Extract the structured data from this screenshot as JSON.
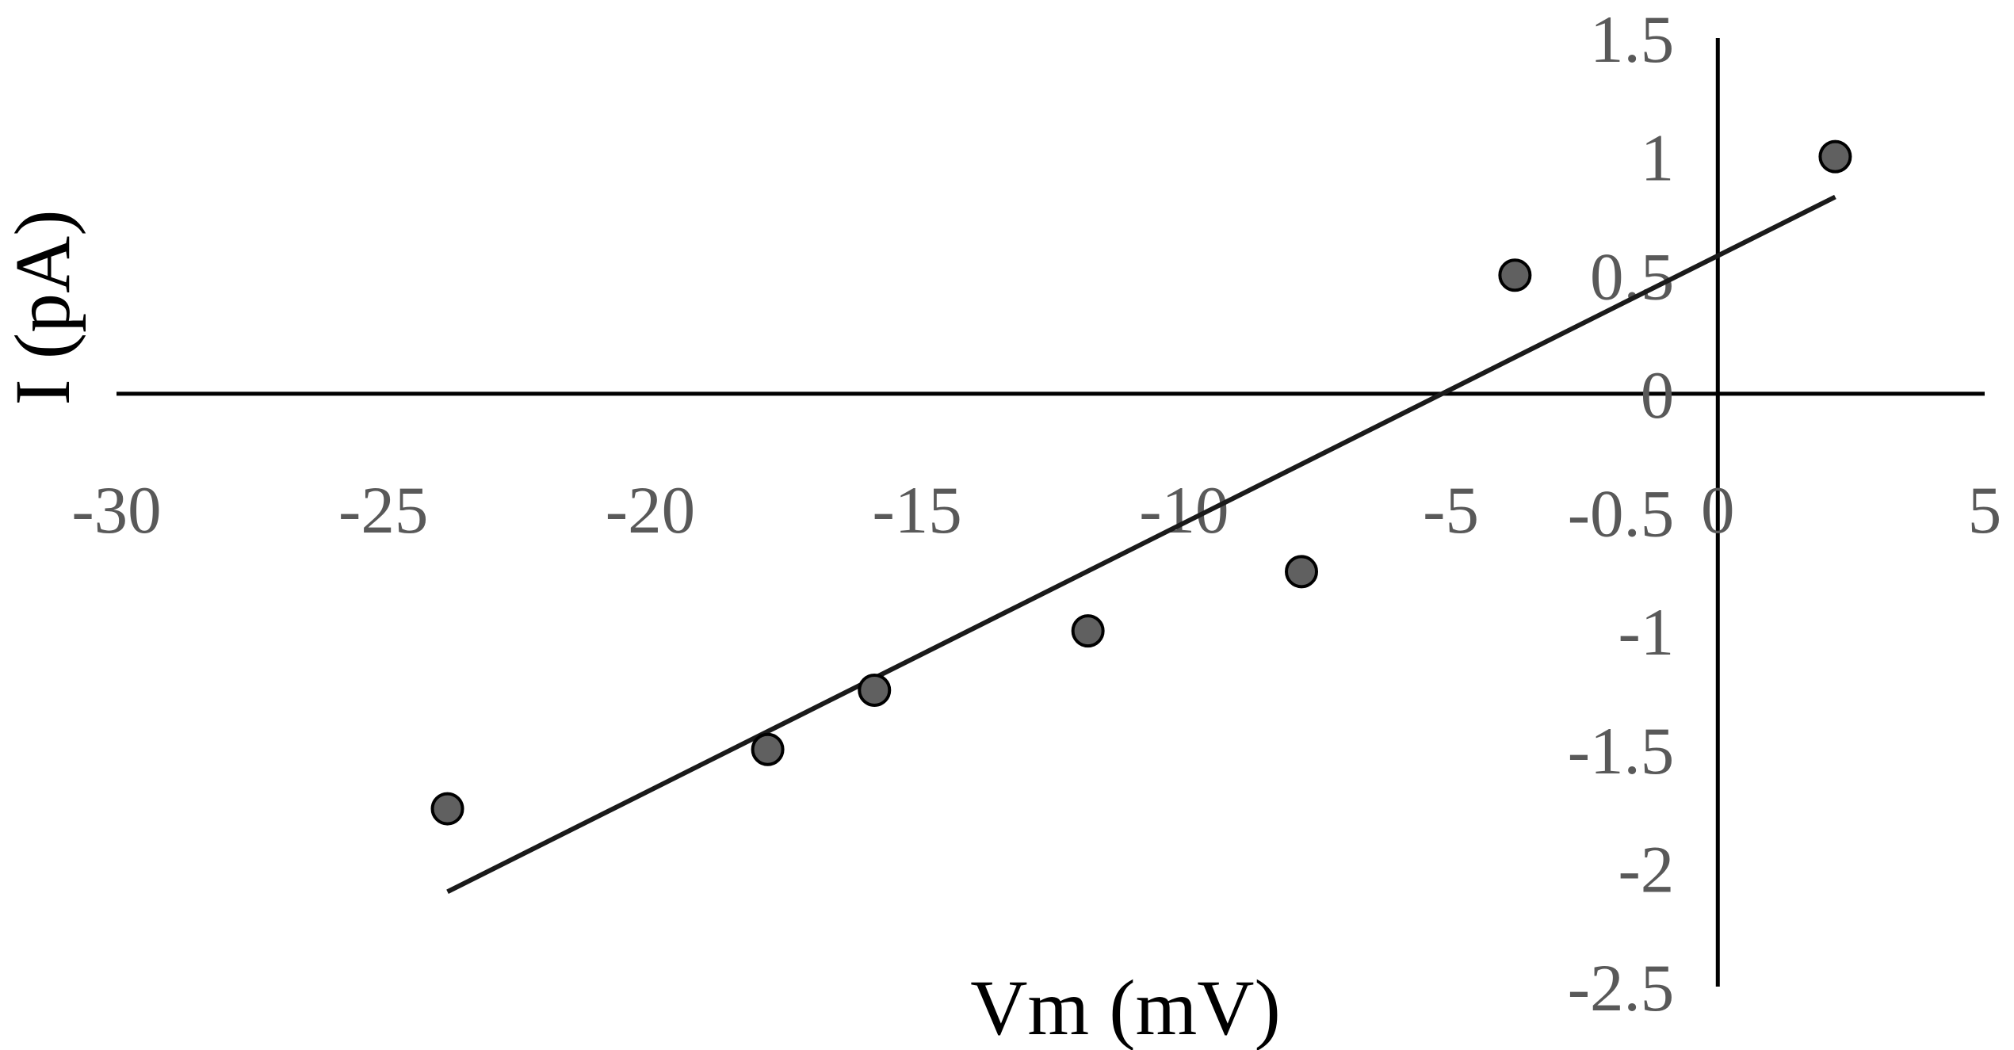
{
  "chart_data": {
    "type": "scatter",
    "title": "",
    "xlabel": "Vm (mV)",
    "ylabel": "I (pA)",
    "xlim": [
      -30,
      5
    ],
    "ylim": [
      -2.5,
      1.5
    ],
    "x_ticks": [
      "-30",
      "-25",
      "-20",
      "-15",
      "-10",
      "-5",
      "0",
      "5"
    ],
    "y_ticks": [
      "1.5",
      "1",
      "0.5",
      "0",
      "-0.5",
      "-1",
      "-1.5",
      "-2",
      "-2.5"
    ],
    "grid": false,
    "legend": "none",
    "series": [
      {
        "type": "scatter",
        "x": [
          -23.8,
          -17.8,
          -15.8,
          -11.8,
          -7.8,
          -3.8,
          2.2
        ],
        "y": [
          -1.75,
          -1.5,
          -1.25,
          -1.0,
          -0.75,
          0.5,
          1.0
        ]
      },
      {
        "type": "trendline",
        "x": [
          -23.8,
          2.2
        ],
        "y": [
          -2.1,
          0.83
        ]
      }
    ],
    "colors": {
      "marker_fill": "#606060",
      "marker_stroke": "#000000",
      "line": "#1a1a1a",
      "axis": "#000000",
      "tick_text": "#595959"
    }
  }
}
